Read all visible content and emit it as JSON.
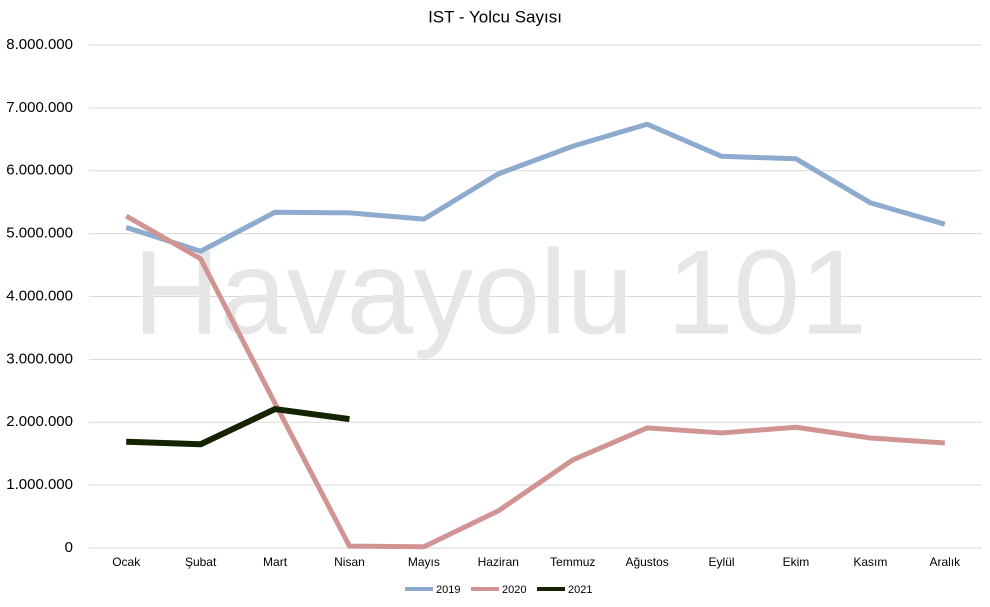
{
  "chart_data": {
    "type": "line",
    "title": "IST - Yolcu Sayısı",
    "watermark": "Havayolu 101",
    "categories": [
      "Ocak",
      "Şubat",
      "Mart",
      "Nisan",
      "Mayıs",
      "Haziran",
      "Temmuz",
      "Ağustos",
      "Eylül",
      "Ekim",
      "Kasım",
      "Aralık"
    ],
    "series": [
      {
        "name": "2019",
        "color": "#8faacf",
        "values": [
          5100000,
          4720000,
          5340000,
          5330000,
          5230000,
          5950000,
          6390000,
          6740000,
          6230000,
          6190000,
          5490000,
          5150000
        ]
      },
      {
        "name": "2020",
        "color": "#d09593",
        "values": [
          5280000,
          4600000,
          2300000,
          30000,
          20000,
          590000,
          1400000,
          1910000,
          1830000,
          1920000,
          1750000,
          1670000
        ]
      },
      {
        "name": "2021",
        "color": "#142300",
        "values": [
          1690000,
          1650000,
          2210000,
          2050000,
          null,
          null,
          null,
          null,
          null,
          null,
          null,
          null
        ]
      }
    ],
    "ylim": [
      0,
      8000000
    ],
    "yticks": [
      0,
      {
        "value": 1000000,
        "label": "1.000.000"
      },
      {
        "value": 2000000,
        "label": "2.000.000"
      },
      {
        "value": 3000000,
        "label": "3.000.000"
      },
      {
        "value": 4000000,
        "label": "4.000.000"
      },
      {
        "value": 5000000,
        "label": "5.000.000"
      },
      {
        "value": 6000000,
        "label": "6.000.000"
      },
      {
        "value": 7000000,
        "label": "7.000.000"
      },
      {
        "value": 8000000,
        "label": "8.000.000"
      }
    ],
    "grid": true,
    "legend": "bottom"
  }
}
